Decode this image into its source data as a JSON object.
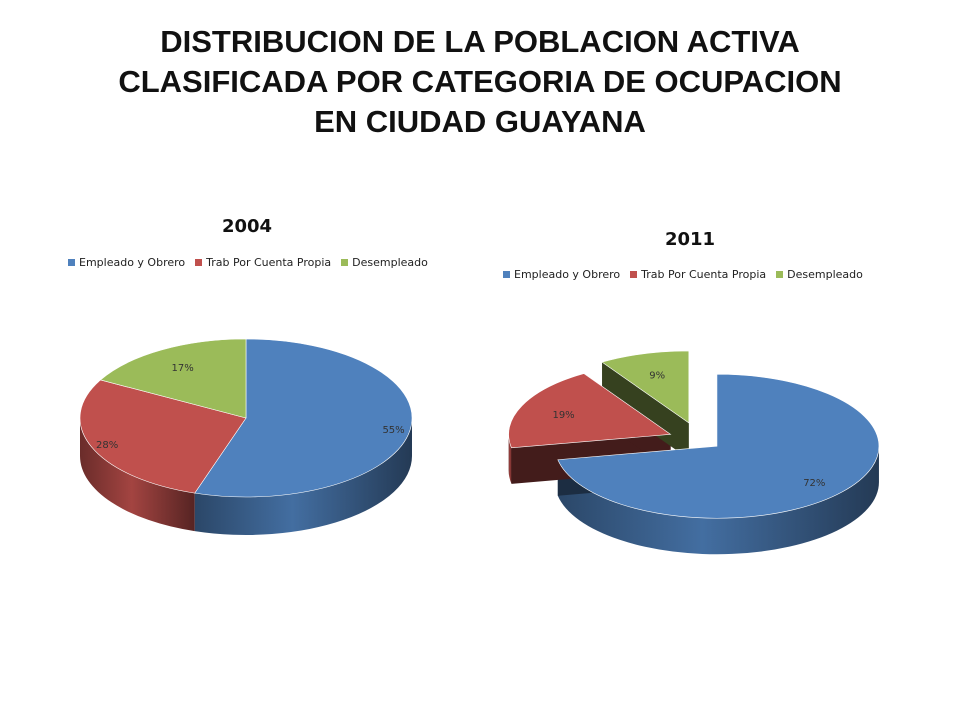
{
  "title_lines": [
    "DISTRIBUCION DE LA POBLACION ACTIVA",
    "CLASIFICADA POR CATEGORIA DE OCUPACION",
    "EN CIUDAD GUAYANA"
  ],
  "colors": {
    "empleado": "#4f81bd",
    "cuenta_propia": "#c0504d",
    "desempleado": "#9bbb59"
  },
  "chart_data": [
    {
      "type": "pie",
      "title": "2004",
      "exploded": false,
      "legend": [
        "Empleado y Obrero",
        "Trab Por Cuenta Propia",
        "Desempleado"
      ],
      "categories": [
        "Empleado y Obrero",
        "Trab Por Cuenta Propia",
        "Desempleado"
      ],
      "values": [
        55,
        28,
        17
      ],
      "labels": [
        "55%",
        "28%",
        "17%"
      ]
    },
    {
      "type": "pie",
      "title": "2011",
      "exploded": true,
      "legend": [
        "Empleado y Obrero",
        "Trab Por Cuenta Propia",
        "Desempleado"
      ],
      "categories": [
        "Empleado y Obrero",
        "Trab Por Cuenta Propia",
        "Desempleado"
      ],
      "values": [
        72,
        19,
        9
      ],
      "labels": [
        "72%",
        "19%",
        "9%"
      ]
    }
  ]
}
